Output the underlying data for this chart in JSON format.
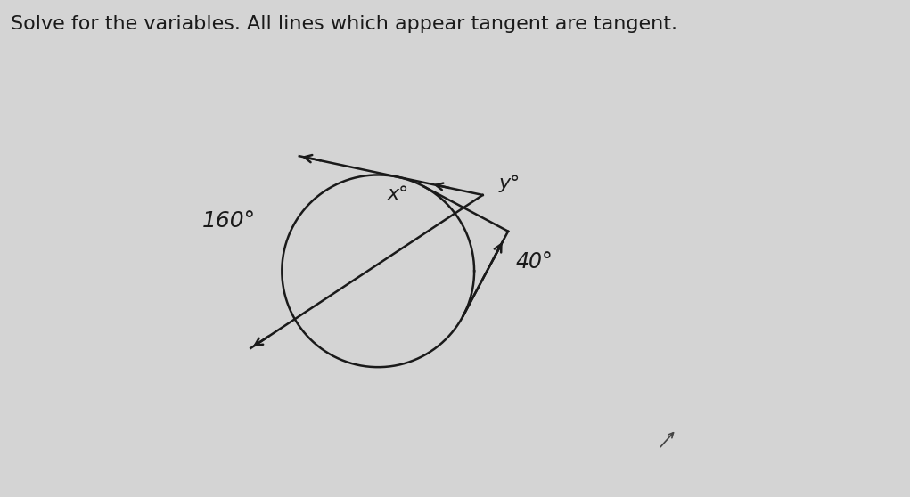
{
  "title": "Solve for the variables. All lines which appear tangent are tangent.",
  "title_fontsize": 16,
  "title_color": "#1a1a1a",
  "bg_color": "#d4d4d4",
  "arc_160_label": "160°",
  "arc_x_label": "x°",
  "angle_40_label": "40°",
  "angle_y_label": "y°",
  "line_color": "#1a1a1a",
  "circle_color": "#1a1a1a",
  "label_fontsize": 16,
  "cursor_color": "#333333",
  "a_TL": 112,
  "a_TR": 62,
  "a_BL_secant": 210,
  "a_BR": -30,
  "t_upper_arrow": -1.1,
  "t_lower_arrow": 0.85
}
